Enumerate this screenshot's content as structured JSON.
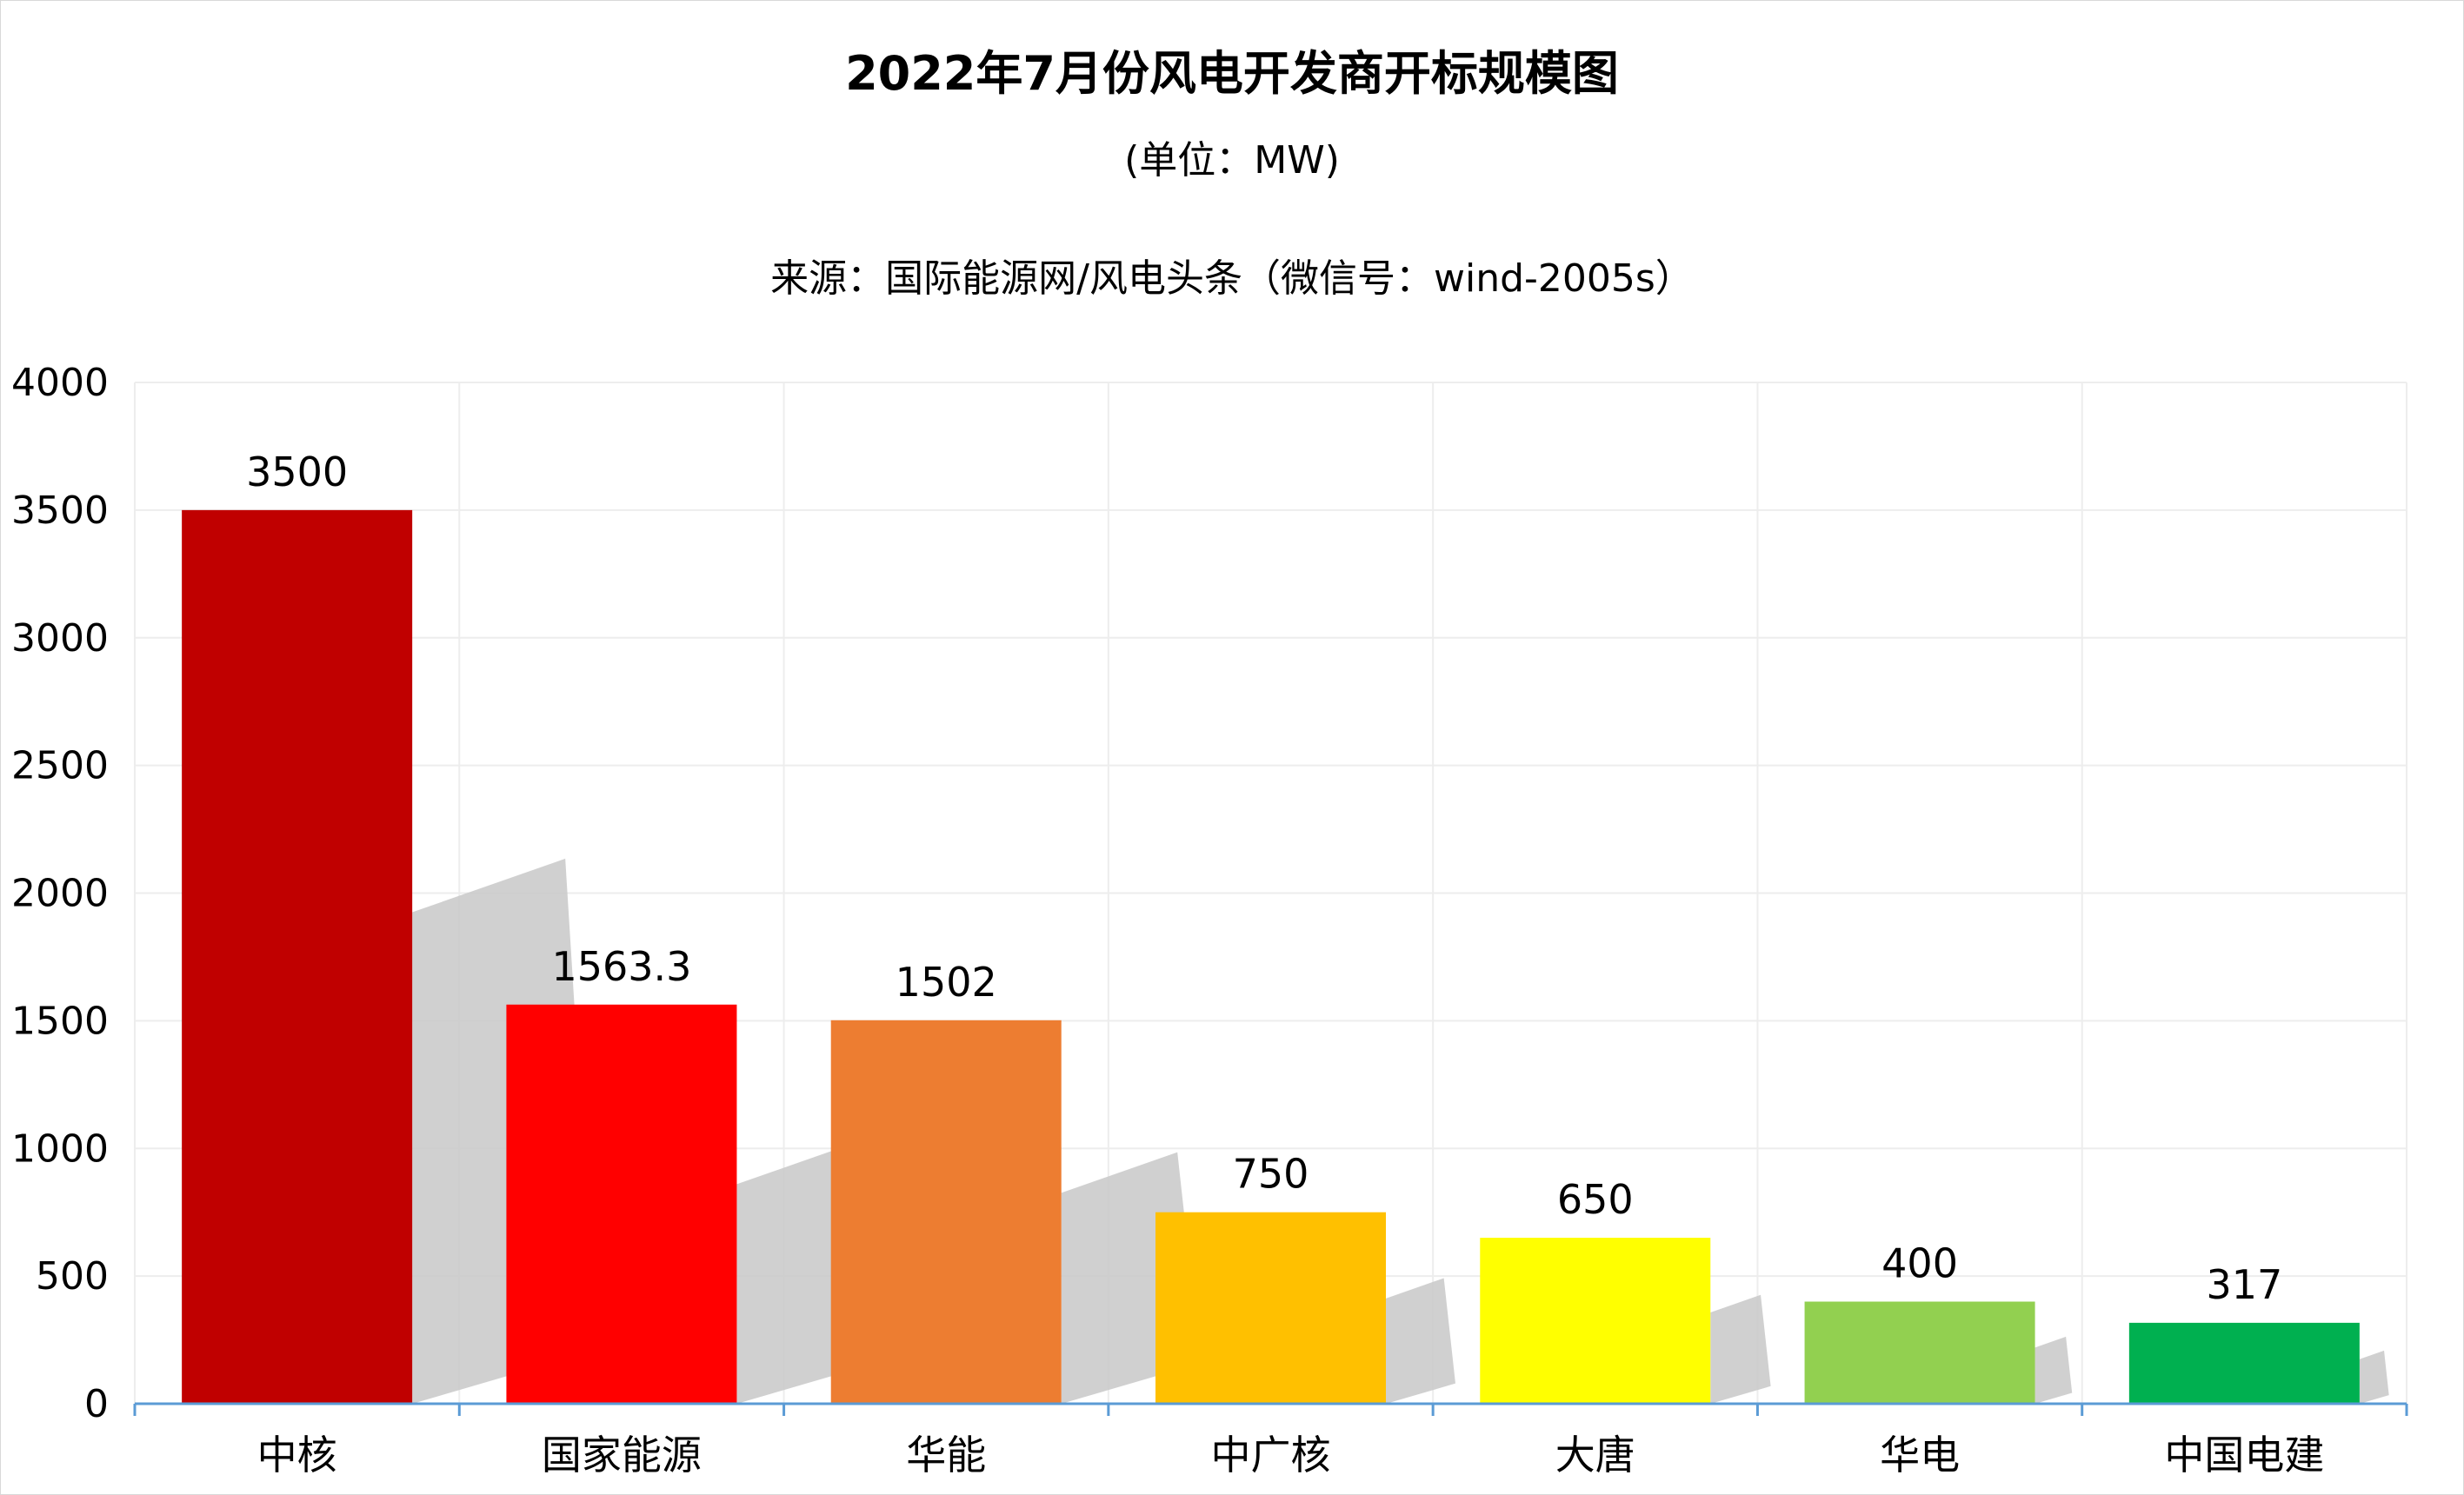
{
  "chart_data": {
    "type": "bar",
    "title": "2022年7月份风电开发商开标规模图",
    "subtitle": "(单位：MW)",
    "source": "来源：国际能源网/风电头条（微信号：wind-2005s）",
    "categories": [
      "中核",
      "国家能源",
      "华能",
      "中广核",
      "大唐",
      "华电",
      "中国电建"
    ],
    "values": [
      3500,
      1563.3,
      1502,
      750,
      650,
      400,
      317
    ],
    "data_labels": [
      "3500",
      "1563.3",
      "1502",
      "750",
      "650",
      "400",
      "317"
    ],
    "colors": [
      "#C00000",
      "#FF0000",
      "#ED7D31",
      "#FFC000",
      "#FFFF00",
      "#92D050",
      "#00B050"
    ],
    "yticks": [
      "0",
      "500",
      "1000",
      "1500",
      "2000",
      "2500",
      "3000",
      "3500",
      "4000"
    ],
    "ylim": [
      0,
      4000
    ],
    "grid": true,
    "xlabel": "",
    "ylabel": ""
  }
}
